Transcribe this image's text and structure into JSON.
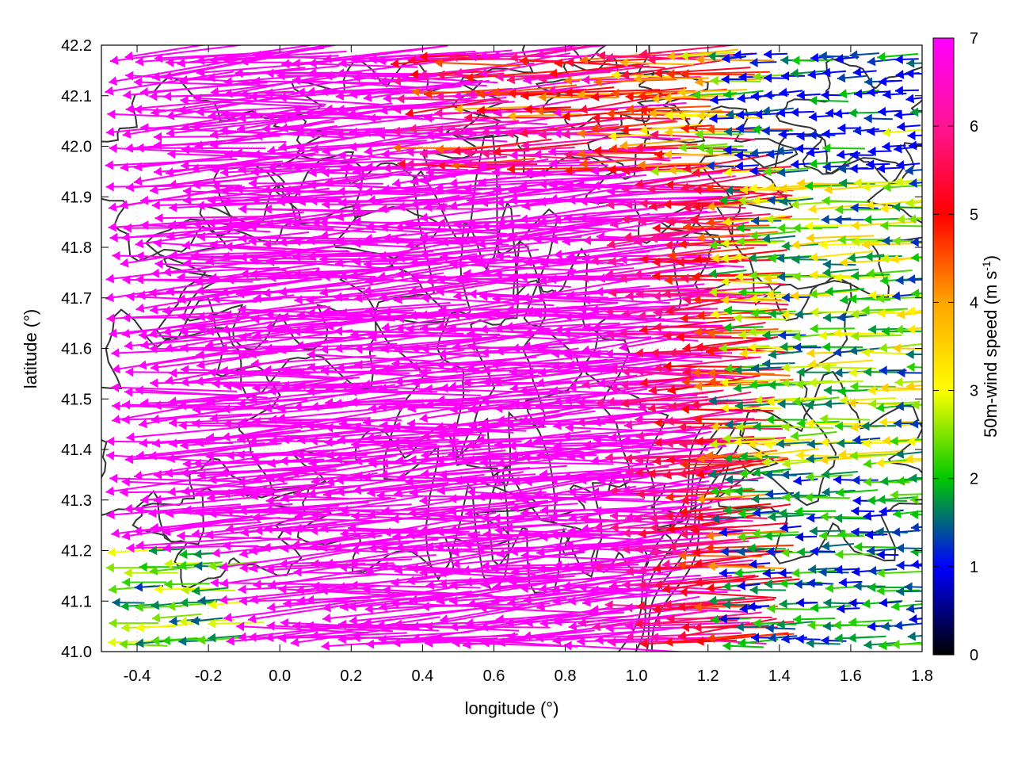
{
  "chart_data": {
    "type": "vector-field",
    "xlabel": "longitude (°)",
    "ylabel": "latitude (°)",
    "xlim": [
      -0.5,
      1.8
    ],
    "ylim": [
      41.0,
      42.2
    ],
    "x_ticks": [
      "-0.4",
      "-0.2",
      "0.0",
      "0.2",
      "0.4",
      "0.6",
      "0.8",
      "1.0",
      "1.2",
      "1.4",
      "1.6",
      "1.8"
    ],
    "y_ticks": [
      "41.0",
      "41.1",
      "41.2",
      "41.3",
      "41.4",
      "41.5",
      "41.6",
      "41.7",
      "41.8",
      "41.9",
      "42.0",
      "42.1",
      "42.2"
    ],
    "grid": true,
    "colorbar": {
      "label_main": "50m-wind speed (m s",
      "label_sup": "-1",
      "label_end": ")",
      "range": [
        0,
        7
      ],
      "ticks": [
        "0",
        "1",
        "2",
        "3",
        "4",
        "5",
        "6",
        "7"
      ],
      "palette": [
        "#000000",
        "#0000ff",
        "#00c800",
        "#ffff00",
        "#ffa500",
        "#ff0000",
        "#ff00ff"
      ]
    },
    "contour_color": "#333333",
    "wind_field": {
      "description_regimes": [
        {
          "region": "west (lon < 0.8)",
          "speed_ms": 7,
          "direction_from": "east-southeast"
        },
        {
          "region": "central (0.8-1.2)",
          "speed_ms": 4.5,
          "direction_from": "east"
        },
        {
          "region": "east (lon > 1.3)",
          "speed_ms": 2,
          "direction_from": "east"
        },
        {
          "region": "southeast (lon > 1.2, lat < 41.35)",
          "speed_ms": 1.5,
          "direction_from": "east"
        }
      ]
    }
  }
}
